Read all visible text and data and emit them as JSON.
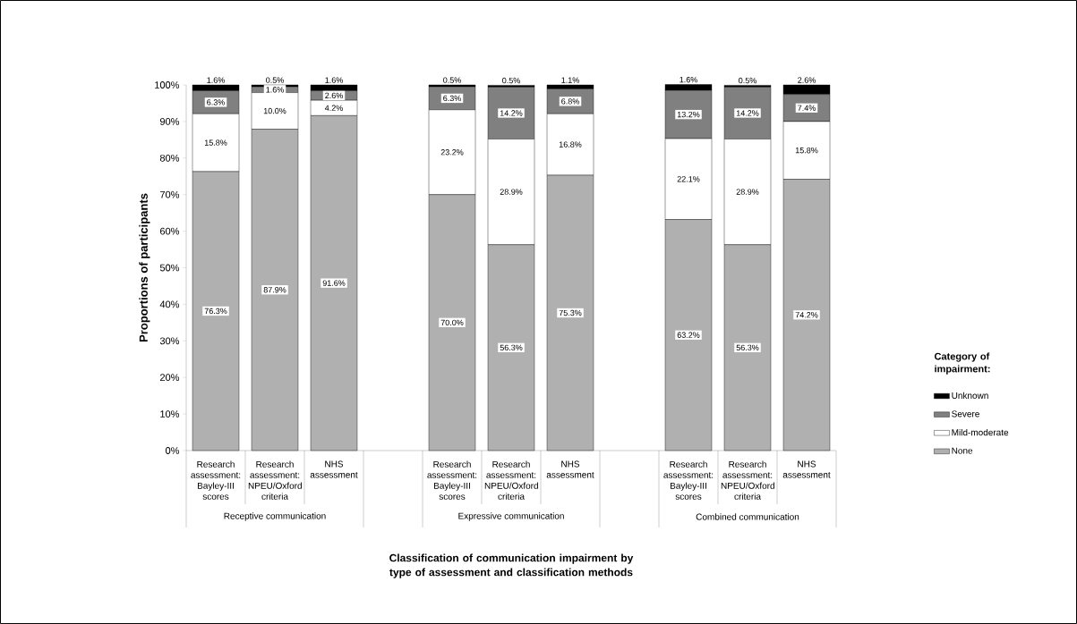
{
  "chart_data": {
    "type": "bar",
    "stacked": true,
    "ylabel": "Proportions of participants",
    "legend_title": "Category of impairment:",
    "legend": "right",
    "categories": [
      "Research assessment: Bayley-III scores",
      "Research assessment: NPEU/Oxford criteria",
      "NHS assessment",
      null,
      "Research assessment: Bayley-III scores",
      "Research assessment: NPEU/Oxford criteria",
      "NHS assessment",
      null,
      "Research assessment: Bayley-III scores",
      "Research assessment: NPEU/Oxford criteria",
      "NHS assessment"
    ],
    "annotations": [
      "Receptive communication",
      "Expressive communication",
      "Combined communication",
      "Classification of communication impairment by type of assessment and classification methods"
    ],
    "ylim": [
      0,
      100
    ],
    "yticks": [
      {
        "value": 0,
        "label": "0%"
      },
      {
        "value": 10,
        "label": "10%"
      },
      {
        "value": 20,
        "label": "20%"
      },
      {
        "value": 30,
        "label": "30%"
      },
      {
        "value": 40,
        "label": "40%"
      },
      {
        "value": 50,
        "label": "50%"
      },
      {
        "value": 60,
        "label": "60%"
      },
      {
        "value": 70,
        "label": "70%"
      },
      {
        "value": 80,
        "label": "80%"
      },
      {
        "value": 90,
        "label": "90%"
      },
      {
        "value": 100,
        "label": "100%"
      }
    ],
    "series": [
      {
        "name": "None",
        "color": "#b0b0b0",
        "values": [
          76.3,
          87.9,
          91.6,
          null,
          70.0,
          56.3,
          75.3,
          null,
          63.2,
          56.3,
          74.2
        ],
        "value_labels": [
          "76.3%",
          "87.9%",
          "91.6%",
          null,
          "70.0%",
          "56.3%",
          "75.3%",
          null,
          "63.2%",
          "56.3%",
          "74.2%"
        ]
      },
      {
        "name": "Mild-moderate",
        "color": "#ffffff",
        "values": [
          15.8,
          10.0,
          4.2,
          null,
          23.2,
          28.9,
          16.8,
          null,
          22.1,
          28.9,
          15.8
        ],
        "value_labels": [
          "15.8%",
          "10.0%",
          "4.2%",
          null,
          "23.2%",
          "28.9%",
          "16.8%",
          null,
          "22.1%",
          "28.9%",
          "15.8%"
        ]
      },
      {
        "name": "Severe",
        "color": "#808080",
        "values": [
          6.3,
          1.6,
          2.6,
          null,
          6.3,
          14.2,
          6.8,
          null,
          13.2,
          14.2,
          7.4
        ],
        "value_labels": [
          "6.3%",
          "1.6%",
          "2.6%",
          null,
          "6.3%",
          "14.2%",
          "6.8%",
          null,
          "13.2%",
          "14.2%",
          "7.4%"
        ]
      },
      {
        "name": "Unknown",
        "color": "#000000",
        "values": [
          1.6,
          0.5,
          1.6,
          null,
          0.5,
          0.5,
          1.1,
          null,
          1.6,
          0.5,
          2.6
        ],
        "value_labels": [
          "1.6%",
          "0.5%",
          "1.6%",
          null,
          "0.5%",
          "0.5%",
          "1.1%",
          null,
          "1.6%",
          "0.5%",
          "2.6%"
        ]
      }
    ]
  }
}
